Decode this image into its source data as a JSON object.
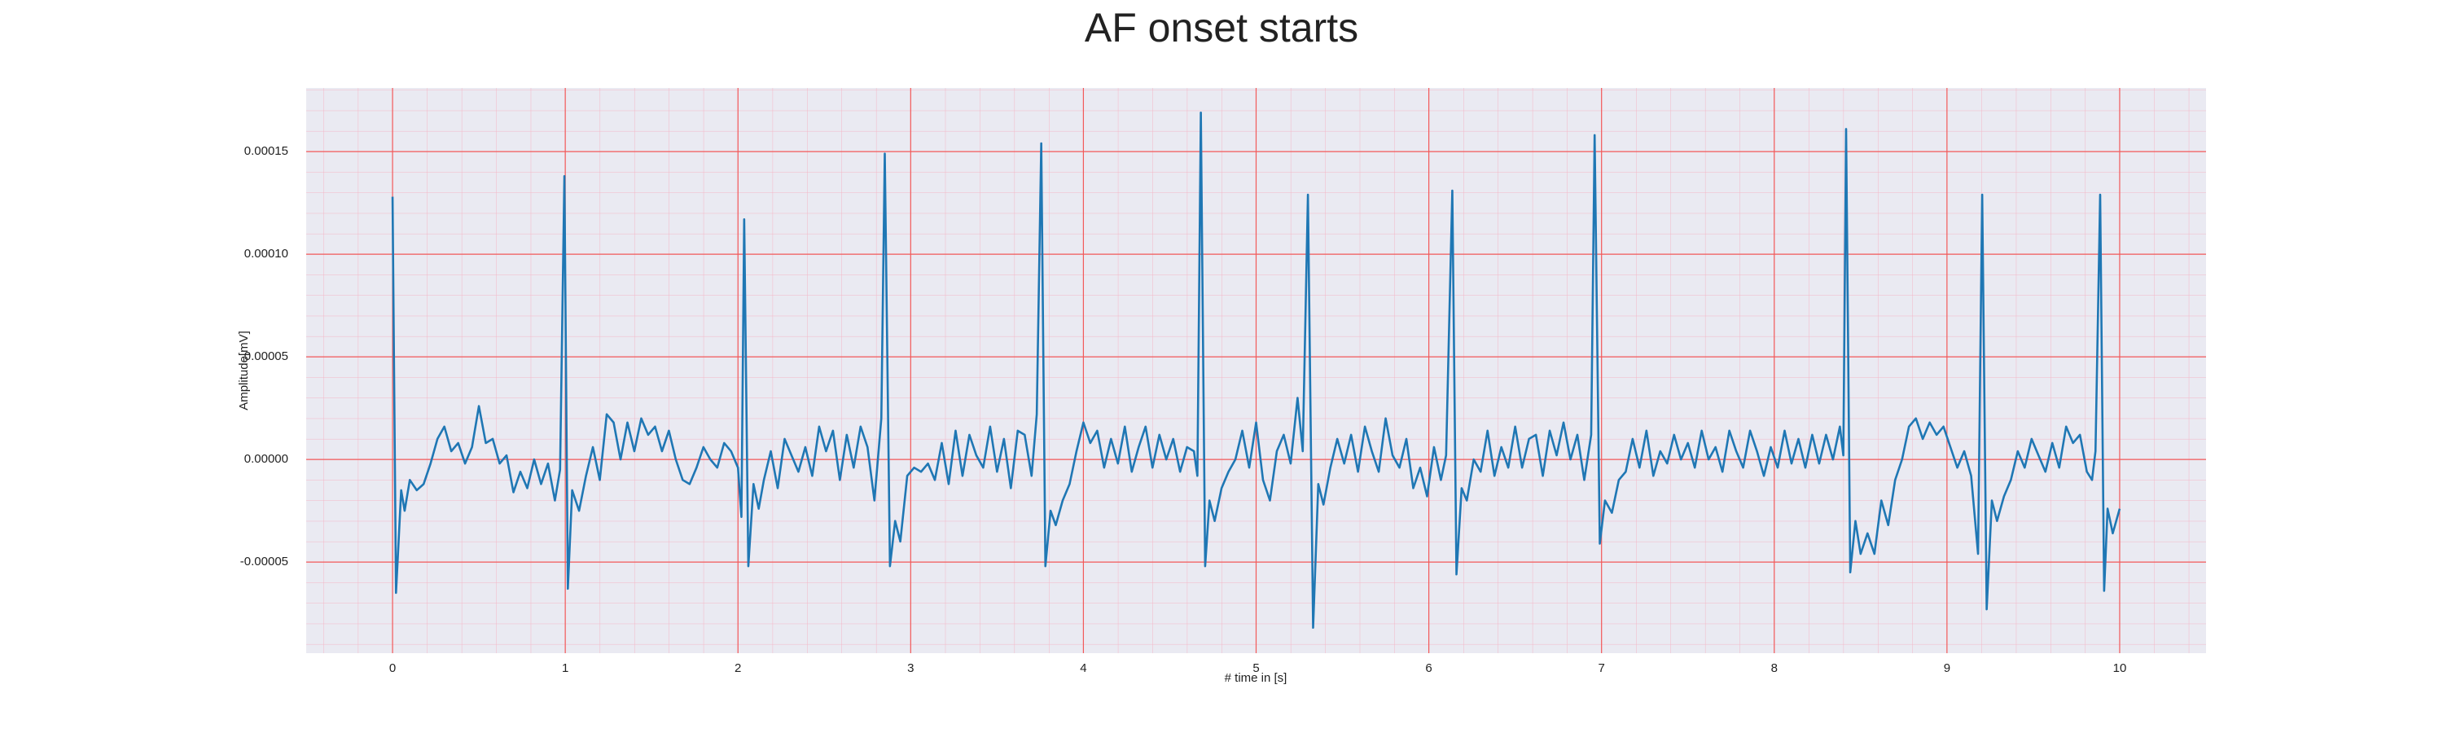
{
  "chart_data": {
    "type": "line",
    "title": "AF onset starts",
    "xlabel": "# time in [s]",
    "ylabel": "Amplitude[mV]",
    "color": "#1f77b4",
    "grid": true,
    "xlim": [
      -0.5,
      10.5
    ],
    "ylim": [
      -9.44e-05,
      0.000181
    ],
    "xticks": [
      0,
      1,
      2,
      3,
      4,
      5,
      6,
      7,
      8,
      9,
      10
    ],
    "yticks": [
      {
        "value": -5e-05,
        "label": "-0.00005"
      },
      {
        "value": 0,
        "label": "0.00000"
      },
      {
        "value": 5e-05,
        "label": "0.00005"
      },
      {
        "value": 0.0001,
        "label": "0.00010"
      },
      {
        "value": 0.00015,
        "label": "0.00015"
      }
    ],
    "x": [
      0.0,
      0.02,
      0.05,
      0.07,
      0.1,
      0.14,
      0.18,
      0.22,
      0.26,
      0.3,
      0.34,
      0.38,
      0.42,
      0.46,
      0.5,
      0.54,
      0.58,
      0.62,
      0.66,
      0.7,
      0.74,
      0.78,
      0.82,
      0.86,
      0.9,
      0.94,
      0.97,
      0.995,
      1.015,
      1.04,
      1.08,
      1.12,
      1.16,
      1.2,
      1.24,
      1.28,
      1.32,
      1.36,
      1.4,
      1.44,
      1.48,
      1.52,
      1.56,
      1.6,
      1.64,
      1.68,
      1.72,
      1.76,
      1.8,
      1.84,
      1.88,
      1.92,
      1.96,
      2.0,
      2.02,
      2.036,
      2.06,
      2.09,
      2.12,
      2.15,
      2.19,
      2.23,
      2.27,
      2.31,
      2.35,
      2.39,
      2.43,
      2.47,
      2.51,
      2.55,
      2.59,
      2.63,
      2.67,
      2.71,
      2.75,
      2.79,
      2.83,
      2.85,
      2.88,
      2.91,
      2.94,
      2.98,
      3.02,
      3.06,
      3.1,
      3.14,
      3.18,
      3.22,
      3.26,
      3.3,
      3.34,
      3.38,
      3.42,
      3.46,
      3.5,
      3.54,
      3.58,
      3.62,
      3.66,
      3.7,
      3.73,
      3.756,
      3.78,
      3.81,
      3.84,
      3.88,
      3.92,
      3.96,
      4.0,
      4.04,
      4.08,
      4.12,
      4.16,
      4.2,
      4.24,
      4.28,
      4.32,
      4.36,
      4.4,
      4.44,
      4.48,
      4.52,
      4.56,
      4.6,
      4.64,
      4.66,
      4.68,
      4.705,
      4.73,
      4.76,
      4.8,
      4.84,
      4.88,
      4.92,
      4.96,
      5.0,
      5.04,
      5.08,
      5.12,
      5.16,
      5.2,
      5.24,
      5.27,
      5.3,
      5.33,
      5.36,
      5.39,
      5.43,
      5.47,
      5.51,
      5.55,
      5.59,
      5.63,
      5.67,
      5.71,
      5.75,
      5.79,
      5.83,
      5.87,
      5.91,
      5.95,
      5.99,
      6.03,
      6.07,
      6.1,
      6.136,
      6.16,
      6.19,
      6.22,
      6.26,
      6.3,
      6.34,
      6.38,
      6.42,
      6.46,
      6.5,
      6.54,
      6.58,
      6.62,
      6.66,
      6.7,
      6.74,
      6.78,
      6.82,
      6.86,
      6.9,
      6.94,
      6.96,
      6.99,
      7.02,
      7.06,
      7.1,
      7.14,
      7.18,
      7.22,
      7.26,
      7.3,
      7.34,
      7.38,
      7.42,
      7.46,
      7.5,
      7.54,
      7.58,
      7.62,
      7.66,
      7.7,
      7.74,
      7.78,
      7.82,
      7.86,
      7.9,
      7.94,
      7.98,
      8.02,
      8.06,
      8.1,
      8.14,
      8.18,
      8.22,
      8.26,
      8.3,
      8.34,
      8.38,
      8.4,
      8.416,
      8.44,
      8.47,
      8.5,
      8.54,
      8.58,
      8.62,
      8.66,
      8.7,
      8.74,
      8.78,
      8.82,
      8.86,
      8.9,
      8.94,
      8.98,
      9.02,
      9.06,
      9.1,
      9.14,
      9.18,
      9.204,
      9.23,
      9.26,
      9.29,
      9.33,
      9.37,
      9.41,
      9.45,
      9.49,
      9.53,
      9.57,
      9.61,
      9.65,
      9.69,
      9.73,
      9.77,
      9.81,
      9.84,
      9.86,
      9.887,
      9.91,
      9.93,
      9.96,
      10.0
    ],
    "values": [
      0.000128,
      -6.5e-05,
      -1.5e-05,
      -2.5e-05,
      -1e-05,
      -1.5e-05,
      -1.2e-05,
      -2e-06,
      1e-05,
      1.6e-05,
      4e-06,
      8e-06,
      -2e-06,
      6e-06,
      2.6e-05,
      8e-06,
      1e-05,
      -2e-06,
      2e-06,
      -1.6e-05,
      -6e-06,
      -1.4e-05,
      0.0,
      -1.2e-05,
      -2e-06,
      -2e-05,
      -5e-06,
      0.000138,
      -6.3e-05,
      -1.5e-05,
      -2.5e-05,
      -8e-06,
      6e-06,
      -1e-05,
      2.2e-05,
      1.8e-05,
      0.0,
      1.8e-05,
      4e-06,
      2e-05,
      1.2e-05,
      1.6e-05,
      4e-06,
      1.4e-05,
      0.0,
      -1e-05,
      -1.2e-05,
      -4e-06,
      6e-06,
      0.0,
      -4e-06,
      8e-06,
      4e-06,
      -4e-06,
      -2.8e-05,
      0.000117,
      -5.2e-05,
      -1.2e-05,
      -2.4e-05,
      -1e-05,
      4e-06,
      -1.4e-05,
      1e-05,
      2e-06,
      -6e-06,
      6e-06,
      -8e-06,
      1.6e-05,
      4e-06,
      1.4e-05,
      -1e-05,
      1.2e-05,
      -4e-06,
      1.6e-05,
      6e-06,
      -2e-05,
      2e-05,
      0.000149,
      -5.2e-05,
      -3e-05,
      -4e-05,
      -8e-06,
      -4e-06,
      -6e-06,
      -2e-06,
      -1e-05,
      8e-06,
      -1.2e-05,
      1.4e-05,
      -8e-06,
      1.2e-05,
      2e-06,
      -4e-06,
      1.6e-05,
      -6e-06,
      1e-05,
      -1.4e-05,
      1.4e-05,
      1.2e-05,
      -8e-06,
      2.2e-05,
      0.000154,
      -5.2e-05,
      -2.5e-05,
      -3.2e-05,
      -2e-05,
      -1.2e-05,
      4e-06,
      1.8e-05,
      8e-06,
      1.4e-05,
      -4e-06,
      1e-05,
      -2e-06,
      1.6e-05,
      -6e-06,
      6e-06,
      1.6e-05,
      -4e-06,
      1.2e-05,
      0.0,
      1e-05,
      -6e-06,
      6e-06,
      4e-06,
      -8e-06,
      0.000169,
      -5.2e-05,
      -2e-05,
      -3e-05,
      -1.4e-05,
      -6e-06,
      0.0,
      1.4e-05,
      -4e-06,
      1.8e-05,
      -1e-05,
      -2e-05,
      4e-06,
      1.2e-05,
      -2e-06,
      3e-05,
      4e-06,
      0.000129,
      -8.2e-05,
      -1.2e-05,
      -2.2e-05,
      -4e-06,
      1e-05,
      -2e-06,
      1.2e-05,
      -6e-06,
      1.6e-05,
      4e-06,
      -6e-06,
      2e-05,
      2e-06,
      -4e-06,
      1e-05,
      -1.4e-05,
      -4e-06,
      -1.8e-05,
      6e-06,
      -1e-05,
      2e-06,
      0.000131,
      -5.6e-05,
      -1.4e-05,
      -2e-05,
      0.0,
      -6e-06,
      1.4e-05,
      -8e-06,
      6e-06,
      -4e-06,
      1.6e-05,
      -4e-06,
      1e-05,
      1.2e-05,
      -8e-06,
      1.4e-05,
      2e-06,
      1.8e-05,
      0.0,
      1.2e-05,
      -1e-05,
      1.2e-05,
      0.000158,
      -4.1e-05,
      -2e-05,
      -2.6e-05,
      -1e-05,
      -6e-06,
      1e-05,
      -4e-06,
      1.4e-05,
      -8e-06,
      4e-06,
      -2e-06,
      1.2e-05,
      0.0,
      8e-06,
      -4e-06,
      1.4e-05,
      0.0,
      6e-06,
      -6e-06,
      1.4e-05,
      4e-06,
      -4e-06,
      1.4e-05,
      4e-06,
      -8e-06,
      6e-06,
      -4e-06,
      1.4e-05,
      -2e-06,
      1e-05,
      -4e-06,
      1.2e-05,
      -2e-06,
      1.2e-05,
      0.0,
      1.6e-05,
      2e-06,
      0.000161,
      -5.5e-05,
      -3e-05,
      -4.6e-05,
      -3.6e-05,
      -4.6e-05,
      -2e-05,
      -3.2e-05,
      -1e-05,
      0.0,
      1.6e-05,
      2e-05,
      1e-05,
      1.8e-05,
      1.2e-05,
      1.6e-05,
      6e-06,
      -4e-06,
      4e-06,
      -8e-06,
      -4.6e-05,
      0.000129,
      -7.3e-05,
      -2e-05,
      -3e-05,
      -1.8e-05,
      -1e-05,
      4e-06,
      -4e-06,
      1e-05,
      2e-06,
      -6e-06,
      8e-06,
      -4e-06,
      1.6e-05,
      8e-06,
      1.2e-05,
      -6e-06,
      -1e-05,
      4e-06,
      0.000129,
      -6.4e-05,
      -2.4e-05,
      -3.6e-05,
      -2.4e-05
    ]
  }
}
